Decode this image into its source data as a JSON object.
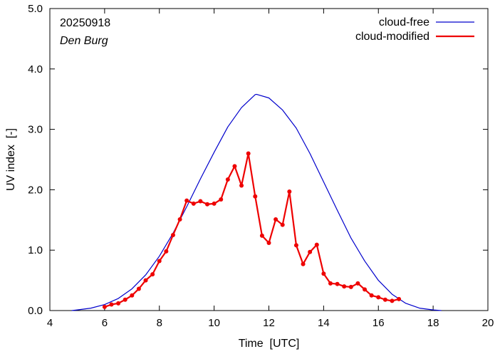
{
  "chart_data": {
    "type": "line",
    "title": "",
    "annotations": {
      "date": "20250918",
      "station": "Den Burg"
    },
    "xlabel": "Time  [UTC]",
    "ylabel": "UV index  [-]",
    "xlim": [
      4,
      20
    ],
    "ylim": [
      0,
      5
    ],
    "x_ticks": [
      4,
      6,
      8,
      10,
      12,
      14,
      16,
      18,
      20
    ],
    "y_ticks": [
      0,
      1,
      2,
      3,
      4,
      5
    ],
    "x_tick_labels": [
      "4",
      "6",
      "8",
      "10",
      "12",
      "14",
      "16",
      "18",
      "20"
    ],
    "y_tick_labels": [
      "0.0",
      "1.0",
      "2.0",
      "3.0",
      "4.0",
      "5.0"
    ],
    "grid": false,
    "legend_position": "top-right",
    "series": [
      {
        "name": "cloud-free",
        "color": "#0000cc",
        "markers": false,
        "peak": {
          "x": 11.55,
          "y": 3.58
        },
        "x": [
          4.8,
          5.0,
          5.5,
          6.0,
          6.5,
          7.0,
          7.5,
          8.0,
          8.5,
          9.0,
          9.5,
          10.0,
          10.5,
          11.0,
          11.5,
          11.55,
          12.0,
          12.5,
          13.0,
          13.5,
          14.0,
          14.5,
          15.0,
          15.5,
          16.0,
          16.5,
          17.0,
          17.5,
          18.0,
          18.3
        ],
        "y": [
          0.0,
          0.01,
          0.04,
          0.1,
          0.2,
          0.36,
          0.59,
          0.9,
          1.28,
          1.72,
          2.18,
          2.62,
          3.04,
          3.36,
          3.575,
          3.58,
          3.52,
          3.32,
          3.02,
          2.6,
          2.13,
          1.66,
          1.2,
          0.82,
          0.5,
          0.27,
          0.12,
          0.04,
          0.01,
          0.0
        ]
      },
      {
        "name": "cloud-modified",
        "color": "#ee0000",
        "markers": true,
        "x": [
          6.0,
          6.25,
          6.5,
          6.75,
          7.0,
          7.25,
          7.5,
          7.75,
          8.0,
          8.25,
          8.5,
          8.75,
          9.0,
          9.25,
          9.5,
          9.75,
          10.0,
          10.25,
          10.5,
          10.75,
          11.0,
          11.25,
          11.5,
          11.75,
          12.0,
          12.25,
          12.5,
          12.75,
          13.0,
          13.25,
          13.5,
          13.75,
          14.0,
          14.25,
          14.5,
          14.75,
          15.0,
          15.25,
          15.5,
          15.75,
          16.0,
          16.25,
          16.5,
          16.75
        ],
        "y": [
          0.06,
          0.1,
          0.12,
          0.18,
          0.25,
          0.36,
          0.5,
          0.6,
          0.82,
          0.98,
          1.25,
          1.51,
          1.82,
          1.77,
          1.81,
          1.76,
          1.77,
          1.84,
          2.17,
          2.39,
          2.07,
          2.6,
          1.89,
          1.24,
          1.12,
          1.51,
          1.42,
          1.97,
          1.08,
          0.77,
          0.97,
          1.09,
          0.61,
          0.45,
          0.44,
          0.4,
          0.39,
          0.45,
          0.35,
          0.25,
          0.22,
          0.18,
          0.16,
          0.19
        ]
      }
    ]
  }
}
